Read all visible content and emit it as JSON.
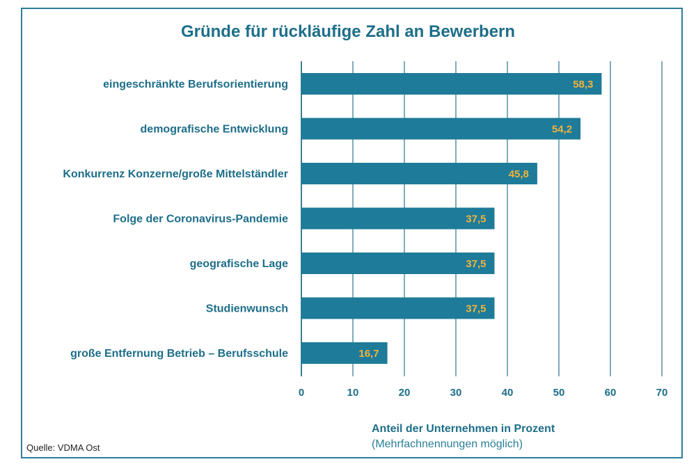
{
  "chart_data": {
    "type": "bar",
    "orientation": "horizontal",
    "title": "Gründe für rückläufige Zahl an Bewerbern",
    "categories": [
      "eingeschränkte Berufsorientierung",
      "demografische Entwicklung",
      "Konkurrenz Konzerne/große Mittelständler",
      "Folge der Coronavirus-Pandemie",
      "geografische Lage",
      "Studienwunsch",
      "große Entfernung Betrieb – Berufsschule"
    ],
    "values": [
      58.3,
      54.2,
      45.8,
      37.5,
      37.5,
      37.5,
      16.7
    ],
    "value_labels": [
      "58,3",
      "54,2",
      "45,8",
      "37,5",
      "37,5",
      "37,5",
      "16,7"
    ],
    "xlabel": "Anteil der Unternehmen in Prozent",
    "xlabel_note": "(Mehrfachnennungen möglich)",
    "xlim": [
      0,
      70
    ],
    "xticks": [
      0,
      10,
      20,
      30,
      40,
      50,
      60,
      70
    ],
    "grid": "vertical",
    "colors": {
      "bar": "#1e7b9a",
      "value_label": "#f0b43c",
      "text": "#1d6e89"
    }
  },
  "source": "Quelle: VDMA Ost"
}
